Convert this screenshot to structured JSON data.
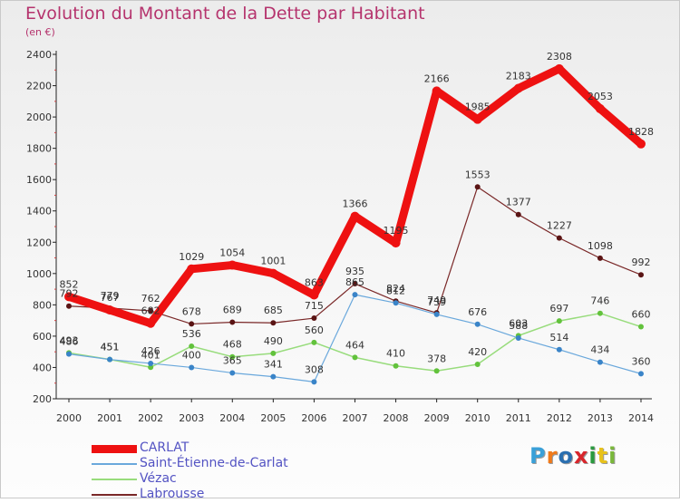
{
  "title": "Evolution du Montant de la Dette par Habitant",
  "unit_label": "(en €)",
  "logo": {
    "text": "Proxiti",
    "colors": [
      "#3aa0d8",
      "#f07a1a",
      "#2a6fb0",
      "#d8262c",
      "#2a9a3e",
      "#e8c21c",
      "#7ab83a"
    ]
  },
  "colors": {
    "title": "#b5336d",
    "axis_text": "#333333",
    "legend_text": "#5353c3"
  },
  "chart_data": {
    "type": "line",
    "title": "Evolution du Montant de la Dette par Habitant",
    "xlabel": "",
    "ylabel": "(en €)",
    "ylim": [
      200,
      2400
    ],
    "yticks": [
      200,
      400,
      600,
      800,
      1000,
      1200,
      1400,
      1600,
      1800,
      2000,
      2200,
      2400
    ],
    "grid": false,
    "legend_position": "bottom-left",
    "categories": [
      "2000",
      "2001",
      "2002",
      "2003",
      "2004",
      "2005",
      "2006",
      "2007",
      "2008",
      "2009",
      "2010",
      "2011",
      "2012",
      "2013",
      "2014"
    ],
    "series": [
      {
        "name": "Labrousse",
        "color": "#7a2828",
        "width": 1.2,
        "marker": "#5a1414",
        "values": [
          792,
          779,
          762,
          678,
          689,
          685,
          715,
          935,
          824,
          749,
          1553,
          1377,
          1227,
          1098,
          992
        ]
      },
      {
        "name": "Vézac",
        "color": "#98dc7c",
        "width": 1.5,
        "marker": "#62c23c",
        "values": [
          493,
          451,
          401,
          536,
          468,
          490,
          560,
          464,
          410,
          378,
          420,
          603,
          697,
          746,
          660
        ]
      },
      {
        "name": "Saint-Étienne-de-Carlat",
        "color": "#6aa8dc",
        "width": 1.2,
        "marker": "#3a84c8",
        "values": [
          486,
          451,
          426,
          400,
          365,
          341,
          308,
          865,
          812,
          739,
          676,
          588,
          514,
          434,
          360
        ]
      },
      {
        "name": "CARLAT",
        "color": "#ee1111",
        "width": 9,
        "marker": "#ee1111",
        "values": [
          852,
          767,
          682,
          1029,
          1054,
          1001,
          863,
          1366,
          1195,
          2166,
          1985,
          2183,
          2308,
          2053,
          1828
        ]
      }
    ]
  }
}
